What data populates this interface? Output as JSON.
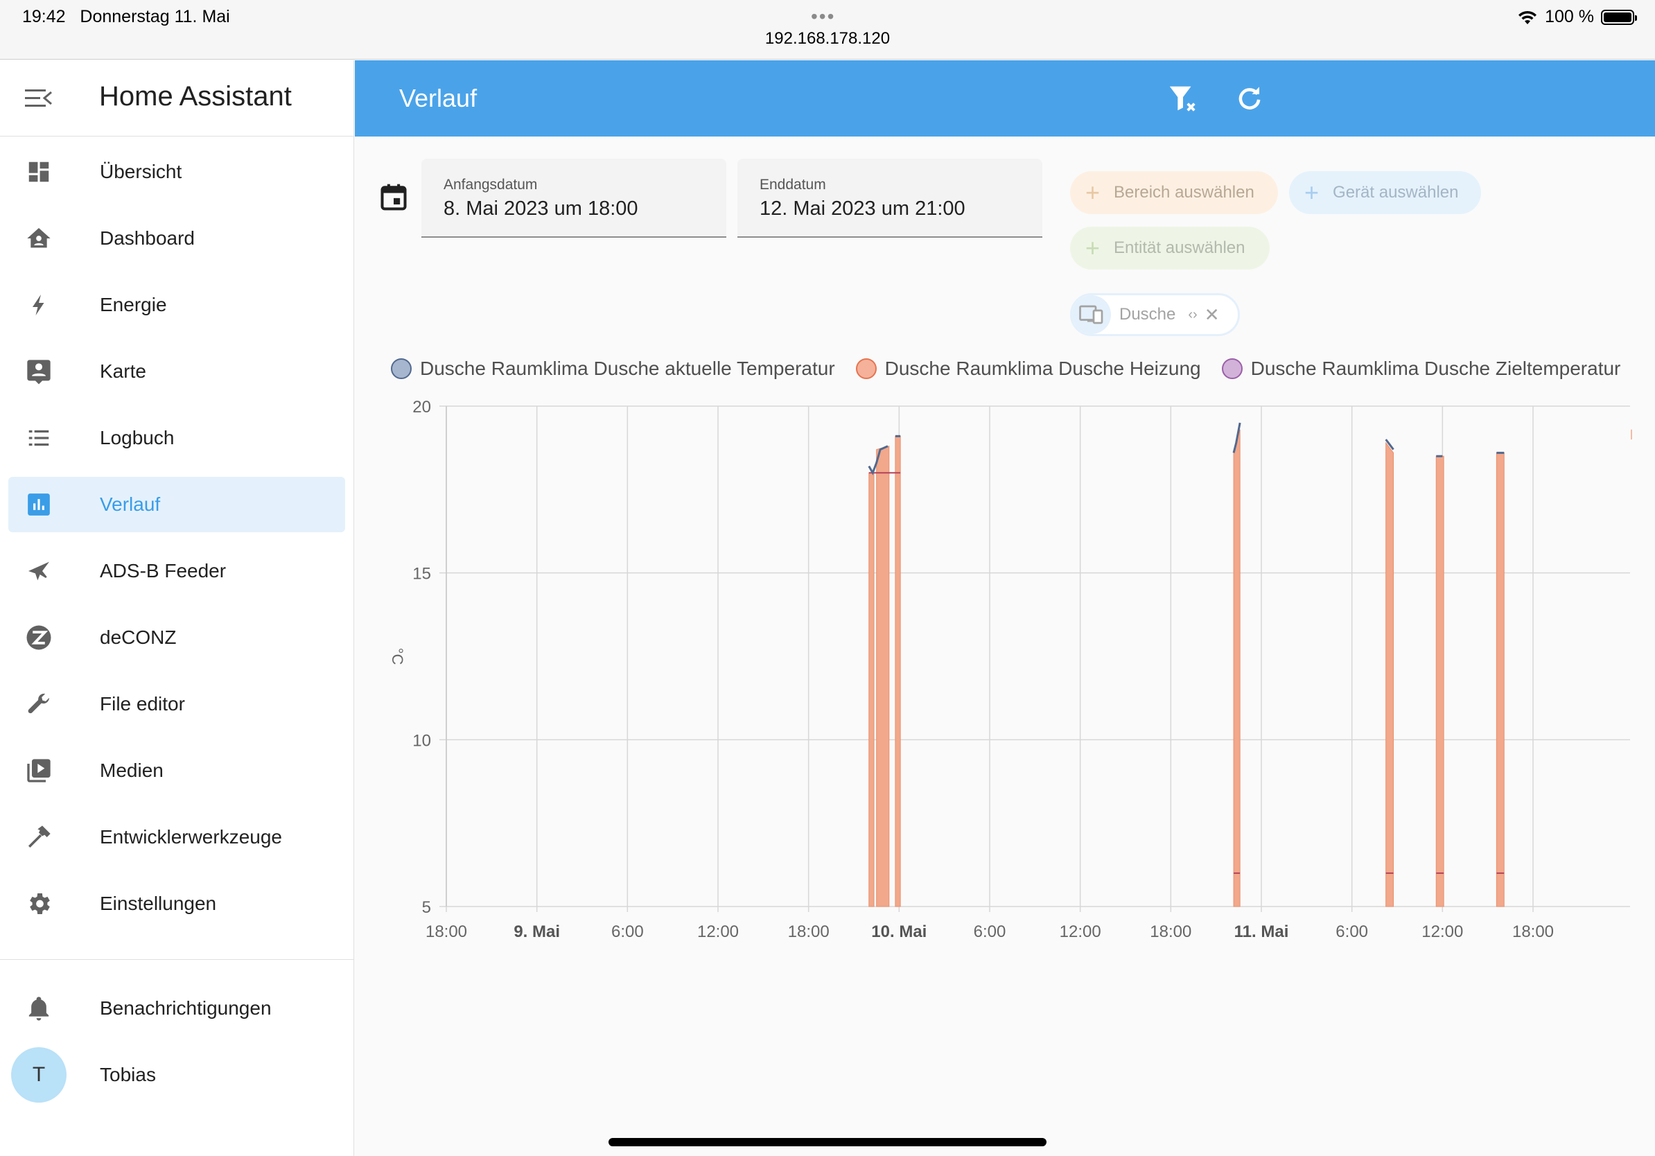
{
  "status_bar": {
    "time": "19:42",
    "date": "Donnerstag 11. Mai",
    "url": "192.168.178.120",
    "battery": "100 %"
  },
  "sidebar": {
    "title": "Home Assistant",
    "items": [
      {
        "label": "Übersicht",
        "icon": "dashboard-grid-icon"
      },
      {
        "label": "Dashboard",
        "icon": "home-account-icon"
      },
      {
        "label": "Energie",
        "icon": "lightning-bolt-icon"
      },
      {
        "label": "Karte",
        "icon": "map-account-icon"
      },
      {
        "label": "Logbuch",
        "icon": "list-icon"
      },
      {
        "label": "Verlauf",
        "icon": "chart-bar-icon"
      },
      {
        "label": "ADS-B Feeder",
        "icon": "airplane-icon"
      },
      {
        "label": "deCONZ",
        "icon": "zigbee-icon"
      },
      {
        "label": "File editor",
        "icon": "wrench-icon"
      },
      {
        "label": "Medien",
        "icon": "media-play-icon"
      },
      {
        "label": "Entwicklerwerkzeuge",
        "icon": "hammer-icon"
      },
      {
        "label": "Einstellungen",
        "icon": "gear-icon"
      }
    ],
    "notifications_label": "Benachrichtigungen",
    "user_name": "Tobias",
    "user_initial": "T"
  },
  "header": {
    "title": "Verlauf"
  },
  "filters": {
    "start_label": "Anfangsdatum",
    "start_value": "8. Mai 2023 um 18:00",
    "end_label": "Enddatum",
    "end_value": "12. Mai 2023 um 21:00",
    "area_chip": "Bereich auswählen",
    "device_chip": "Gerät auswählen",
    "entity_chip": "Entität auswählen",
    "selected_chip": "Dusche"
  },
  "colors": {
    "accent": "#4aa3e9",
    "series_temp": "#52698f",
    "series_heat": "#f1a88b",
    "series_target": "#b27fbf"
  },
  "chart_data": {
    "type": "line",
    "ylabel": "°C",
    "ylim": [
      5,
      20
    ],
    "yticks": [
      5,
      10,
      15,
      20
    ],
    "xlim": [
      "2023-05-08 18:00",
      "2023-05-12 21:00"
    ],
    "xticks": [
      {
        "t": "2023-05-08 18:00",
        "label": "18:00",
        "bold": false
      },
      {
        "t": "2023-05-09 00:00",
        "label": "9. Mai",
        "bold": true
      },
      {
        "t": "2023-05-09 06:00",
        "label": "6:00",
        "bold": false
      },
      {
        "t": "2023-05-09 12:00",
        "label": "12:00",
        "bold": false
      },
      {
        "t": "2023-05-09 18:00",
        "label": "18:00",
        "bold": false
      },
      {
        "t": "2023-05-10 00:00",
        "label": "10. Mai",
        "bold": true
      },
      {
        "t": "2023-05-10 06:00",
        "label": "6:00",
        "bold": false
      },
      {
        "t": "2023-05-10 12:00",
        "label": "12:00",
        "bold": false
      },
      {
        "t": "2023-05-10 18:00",
        "label": "18:00",
        "bold": false
      },
      {
        "t": "2023-05-11 00:00",
        "label": "11. Mai",
        "bold": true
      },
      {
        "t": "2023-05-11 06:00",
        "label": "6:00",
        "bold": false
      },
      {
        "t": "2023-05-11 12:00",
        "label": "12:00",
        "bold": false
      },
      {
        "t": "2023-05-11 18:00",
        "label": "18:00",
        "bold": false
      }
    ],
    "legend_placement": "top",
    "grid": true,
    "series": [
      {
        "name": "Dusche Raumklima Dusche aktuelle Temperatur",
        "kind": "line",
        "segments": [
          [
            [
              "2023-05-09 22:00",
              18.2
            ],
            [
              "2023-05-09 22:15",
              18.0
            ],
            [
              "2023-05-09 22:30",
              18.3
            ],
            [
              "2023-05-09 22:45",
              18.7
            ],
            [
              "2023-05-09 23:15",
              18.8
            ]
          ],
          [
            [
              "2023-05-09 23:45",
              19.1
            ],
            [
              "2023-05-10 00:05",
              19.1
            ]
          ],
          [
            [
              "2023-05-10 22:10",
              18.6
            ],
            [
              "2023-05-10 22:20",
              18.9
            ],
            [
              "2023-05-10 22:35",
              19.5
            ]
          ],
          [
            [
              "2023-05-11 08:15",
              19.0
            ],
            [
              "2023-05-11 08:25",
              18.9
            ],
            [
              "2023-05-11 08:45",
              18.7
            ]
          ],
          [
            [
              "2023-05-11 11:35",
              18.5
            ],
            [
              "2023-05-11 12:00",
              18.5
            ]
          ],
          [
            [
              "2023-05-11 15:35",
              18.6
            ],
            [
              "2023-05-11 16:05",
              18.6
            ]
          ]
        ]
      },
      {
        "name": "Dusche Raumklima Dusche Heizung",
        "kind": "area",
        "segments": [
          [
            [
              "2023-05-09 22:00",
              18.0
            ],
            [
              "2023-05-09 22:20",
              18.0
            ]
          ],
          [
            [
              "2023-05-09 22:30",
              18.7
            ],
            [
              "2023-05-09 23:20",
              18.8
            ]
          ],
          [
            [
              "2023-05-09 23:45",
              19.1
            ],
            [
              "2023-05-10 00:05",
              19.1
            ]
          ],
          [
            [
              "2023-05-10 22:10",
              18.6
            ],
            [
              "2023-05-10 22:35",
              19.3
            ]
          ],
          [
            [
              "2023-05-11 08:15",
              18.9
            ],
            [
              "2023-05-11 08:45",
              18.6
            ]
          ],
          [
            [
              "2023-05-11 11:35",
              18.5
            ],
            [
              "2023-05-11 12:05",
              18.5
            ]
          ],
          [
            [
              "2023-05-11 15:35",
              18.6
            ],
            [
              "2023-05-11 16:05",
              18.6
            ]
          ]
        ]
      },
      {
        "name": "Dusche Raumklima Dusche Zieltemperatur",
        "kind": "line",
        "segments": [
          [
            [
              "2023-05-09 22:00",
              18.0
            ],
            [
              "2023-05-10 00:05",
              18.0
            ]
          ],
          [
            [
              "2023-05-10 22:10",
              6.0
            ],
            [
              "2023-05-10 22:35",
              6.0
            ]
          ],
          [
            [
              "2023-05-11 08:15",
              6.0
            ],
            [
              "2023-05-11 08:45",
              6.0
            ]
          ],
          [
            [
              "2023-05-11 11:35",
              6.0
            ],
            [
              "2023-05-11 12:05",
              6.0
            ]
          ],
          [
            [
              "2023-05-11 15:35",
              6.0
            ],
            [
              "2023-05-11 16:05",
              6.0
            ]
          ]
        ]
      }
    ]
  }
}
